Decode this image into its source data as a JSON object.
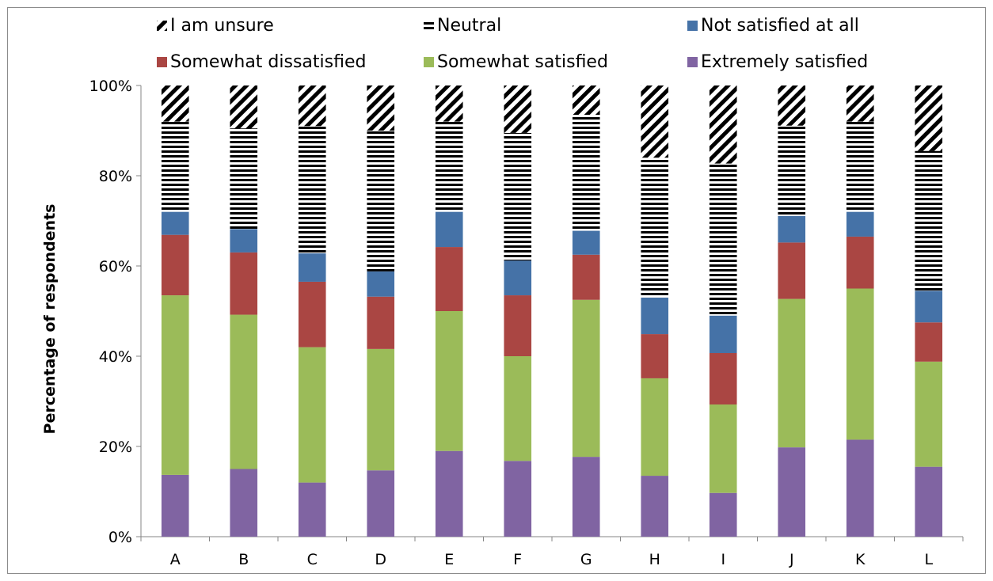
{
  "chart_data": {
    "type": "bar",
    "stacked": true,
    "percent_stacked": true,
    "ylabel": "Percentage of respondents",
    "xlabel": "",
    "ylim": [
      0,
      100
    ],
    "yticks": [
      "0%",
      "20%",
      "40%",
      "60%",
      "80%",
      "100%"
    ],
    "categories": [
      "A",
      "B",
      "C",
      "D",
      "E",
      "F",
      "G",
      "H",
      "I",
      "J",
      "K",
      "L"
    ],
    "legend_position": "top",
    "grid": false,
    "series": [
      {
        "name": "Extremely satisfied",
        "color": "#8064A2",
        "pattern": "solid",
        "values": [
          13.7,
          15.0,
          12.0,
          14.7,
          19.0,
          16.8,
          17.7,
          13.5,
          9.7,
          19.8,
          21.5,
          15.5
        ]
      },
      {
        "name": "Somewhat satisfied",
        "color": "#9BBB59",
        "pattern": "solid",
        "values": [
          39.8,
          34.2,
          30.0,
          26.9,
          31.0,
          23.2,
          34.8,
          21.6,
          19.6,
          32.9,
          33.5,
          23.3
        ]
      },
      {
        "name": "Somewhat dissatisfied",
        "color": "#AA4643",
        "pattern": "solid",
        "values": [
          13.4,
          13.8,
          14.5,
          11.6,
          14.2,
          13.5,
          10.0,
          9.8,
          11.4,
          12.5,
          11.5,
          8.7
        ]
      },
      {
        "name": "Not satisfied at all",
        "color": "#4572A7",
        "pattern": "solid",
        "values": [
          5.1,
          5.2,
          6.3,
          5.6,
          7.8,
          7.7,
          5.3,
          8.1,
          8.3,
          5.9,
          5.5,
          7.0
        ]
      },
      {
        "name": "Neutral",
        "color": "#000000",
        "pattern": "horizontal",
        "values": [
          20.0,
          22.3,
          28.2,
          31.2,
          20.0,
          28.3,
          25.7,
          31.0,
          33.7,
          20.0,
          20.0,
          31.0
        ]
      },
      {
        "name": "I am unsure",
        "color": "#000000",
        "pattern": "diagonal",
        "values": [
          8.0,
          9.5,
          9.0,
          10.0,
          8.0,
          10.5,
          6.5,
          16.0,
          17.3,
          8.9,
          8.0,
          14.5
        ]
      }
    ],
    "legend_order": [
      "I am unsure",
      "Neutral",
      "Not satisfied at all",
      "Somewhat dissatisfied",
      "Somewhat satisfied",
      "Extremely satisfied"
    ]
  }
}
